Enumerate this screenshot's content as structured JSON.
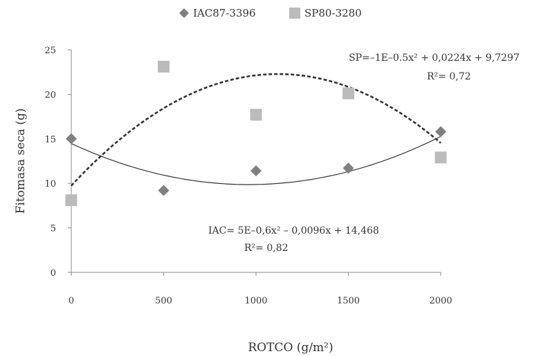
{
  "chart_data": {
    "type": "scatter",
    "title": "",
    "xlabel": "ROTCO (g/m²)",
    "ylabel": "Fitomasa seca (g)",
    "xlim": [
      0,
      2000
    ],
    "ylim": [
      0,
      25
    ],
    "xticks": [
      "0",
      "500",
      "1000",
      "1500",
      "2000"
    ],
    "yticks": [
      "0",
      "5",
      "10",
      "15",
      "20",
      "25"
    ],
    "grid": false,
    "legend_position": "top-center",
    "series": [
      {
        "name": "IAC87-3396",
        "marker": "diamond",
        "color": "#808080",
        "x": [
          0,
          500,
          1000,
          1500,
          2000
        ],
        "y": [
          15.0,
          9.2,
          11.4,
          11.7,
          15.8
        ],
        "trend": {
          "a": 5e-06,
          "b": -0.0096,
          "c": 14.468,
          "style": "solid"
        },
        "equation": "IAC= 5E–0,6x² – 0,0096x + 14,468",
        "r2": "R²= 0,82"
      },
      {
        "name": "SP80-3280",
        "marker": "square",
        "color": "#bbbbbb",
        "x": [
          0,
          500,
          1000,
          1500,
          2000
        ],
        "y": [
          8.1,
          23.1,
          17.7,
          20.1,
          12.9
        ],
        "trend": {
          "a": -1e-05,
          "b": 0.0224,
          "c": 9.7297,
          "style": "dashed"
        },
        "equation": "SP=–1E–0.5x² + 0,0224x + 9,7297",
        "r2": "R²= 0,72"
      }
    ]
  }
}
